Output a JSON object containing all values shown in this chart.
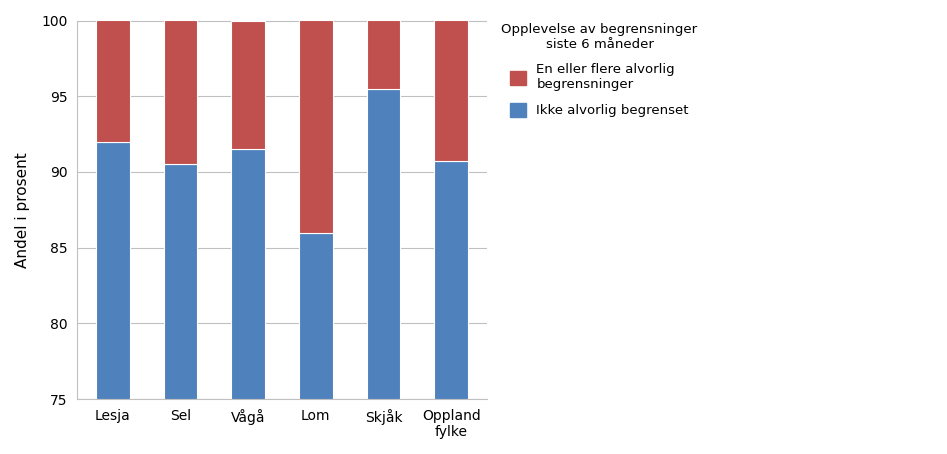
{
  "categories": [
    "Lesja",
    "Sel",
    "Vågå",
    "Lom",
    "Skjåk",
    "Oppland\nfylke"
  ],
  "blue_values": [
    92,
    90.5,
    91.5,
    86,
    95.5,
    90.7
  ],
  "red_values": [
    8,
    9.5,
    8.5,
    14,
    4.5,
    9.3
  ],
  "blue_color": "#4F81BD",
  "red_color": "#C0504D",
  "ylabel": "Andel i prosent",
  "ylim_min": 75,
  "ylim_max": 100,
  "yticks": [
    75,
    80,
    85,
    90,
    95,
    100
  ],
  "legend_title": "Opplevelse av begrensninger\nsiste 6 måneder",
  "legend_label_red": "En eller flere alvorlig\nbegrensninger",
  "legend_label_blue": "Ikke alvorlig begrenset",
  "background_color": "#FFFFFF",
  "plot_bg_color": "#FFFFFF",
  "grid_color": "#C0C0C0"
}
